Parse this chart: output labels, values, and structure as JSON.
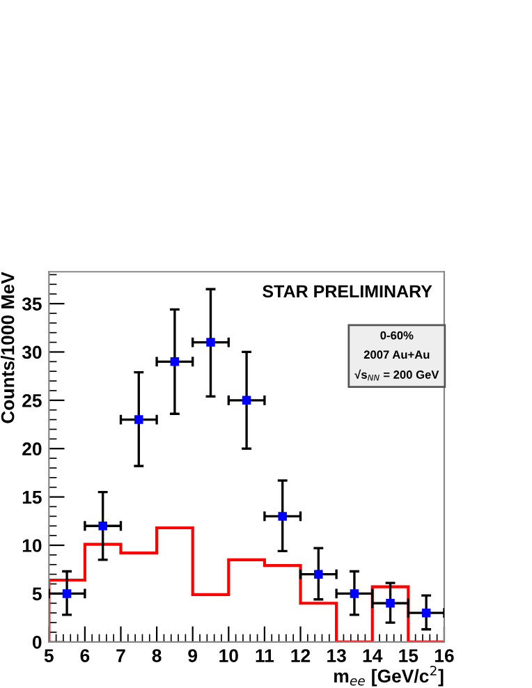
{
  "chart_data": {
    "type": "scatter",
    "xlabel": "m$_{ee}$ [GeV/c$^{2}$]",
    "ylabel": "Counts/1000 MeV",
    "annotations": [
      "STAR PRELIMINARY",
      "0-60%",
      "2007 Au+Au",
      "√s$_{NN}$ = 200 GeV"
    ],
    "series": [
      {
        "color": "#0000ff",
        "x": [
          5.5,
          6.5,
          7.5,
          8.5,
          9.5,
          10.5,
          11.5,
          12.5,
          13.5,
          14.5,
          15.5
        ],
        "values": [
          5,
          12,
          23,
          29,
          31,
          25,
          13,
          7,
          5,
          4,
          3
        ],
        "errors": [
          [
            2.8,
            7.3
          ],
          [
            8.5,
            15.5
          ],
          [
            18.2,
            27.9
          ],
          [
            23.6,
            34.4
          ],
          [
            25.4,
            36.5
          ],
          [
            20.0,
            30.0
          ],
          [
            9.4,
            16.7
          ],
          [
            4.4,
            9.7
          ],
          [
            2.8,
            7.3
          ],
          [
            2.0,
            6.1
          ],
          [
            1.3,
            4.8
          ]
        ],
        "xerrors": [
          0.5,
          0.5,
          0.5,
          0.5,
          0.5,
          0.5,
          0.5,
          0.5,
          0.5,
          0.5,
          0.5
        ]
      },
      {
        "type": "histogram",
        "color": "#ff0000",
        "bins": [
          5,
          6,
          7,
          8,
          9,
          10,
          11,
          12,
          13,
          14,
          15,
          16
        ],
        "values": [
          6.4,
          10.1,
          9.2,
          11.8,
          4.9,
          8.5,
          7.9,
          4.0,
          0,
          5.7,
          0
        ]
      }
    ],
    "marker": "square",
    "xlim": [
      5,
      16
    ],
    "ylim": [
      0,
      38.3
    ],
    "xticks": [
      5,
      6,
      7,
      8,
      9,
      10,
      11,
      12,
      13,
      14,
      15,
      16
    ],
    "yticks": [
      0,
      5,
      10,
      15,
      20,
      25,
      30,
      35
    ],
    "grid": false,
    "legend": false
  }
}
